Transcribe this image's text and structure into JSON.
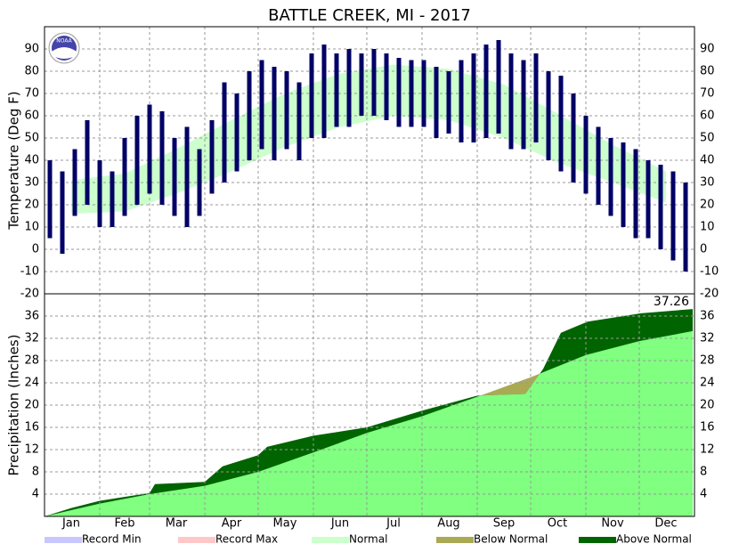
{
  "title": "BATTLE CREEK, MI - 2017",
  "logo_text": "NOAA",
  "legend": [
    {
      "name": "Record Min",
      "color": "#c8c8ff"
    },
    {
      "name": "Record Max",
      "color": "#ffc8c8"
    },
    {
      "name": "Normal",
      "color": "#ccffcc"
    },
    {
      "name": "Below Normal",
      "color": "#aaaa55"
    },
    {
      "name": "Above Normal",
      "color": "#006400"
    }
  ],
  "chart_data": [
    {
      "type": "range_bar",
      "ylabel": "Temperature (Deg F)",
      "xlim": [
        0,
        365
      ],
      "xticks": [
        {
          "value": 15,
          "label": "Jan"
        },
        {
          "value": 45,
          "label": "Feb"
        },
        {
          "value": 74,
          "label": "Mar"
        },
        {
          "value": 105,
          "label": "Apr"
        },
        {
          "value": 135,
          "label": "May"
        },
        {
          "value": 166,
          "label": "Jun"
        },
        {
          "value": 196,
          "label": "Jul"
        },
        {
          "value": 227,
          "label": "Aug"
        },
        {
          "value": 258,
          "label": "Sep"
        },
        {
          "value": 288,
          "label": "Oct"
        },
        {
          "value": 319,
          "label": "Nov"
        },
        {
          "value": 349,
          "label": "Dec"
        }
      ],
      "xgrid": [
        31,
        59,
        90,
        120,
        151,
        181,
        212,
        243,
        273,
        304,
        334
      ],
      "ylim": [
        -20,
        100
      ],
      "yticks": [
        -20,
        -10,
        0,
        10,
        20,
        30,
        40,
        50,
        60,
        70,
        80,
        90
      ],
      "grid": true,
      "color": "#000066",
      "x": [
        3,
        10,
        17,
        24,
        31,
        38,
        45,
        52,
        59,
        66,
        73,
        80,
        87,
        94,
        101,
        108,
        115,
        122,
        129,
        136,
        143,
        150,
        157,
        164,
        171,
        178,
        185,
        192,
        199,
        206,
        213,
        220,
        227,
        234,
        241,
        248,
        255,
        262,
        269,
        276,
        283,
        290,
        297,
        304,
        311,
        318,
        325,
        332,
        339,
        346,
        353,
        360
      ],
      "low": [
        5,
        -2,
        15,
        20,
        10,
        10,
        15,
        20,
        25,
        20,
        15,
        10,
        15,
        25,
        30,
        35,
        40,
        45,
        40,
        45,
        40,
        50,
        50,
        55,
        55,
        60,
        60,
        58,
        55,
        55,
        55,
        50,
        52,
        48,
        48,
        50,
        52,
        45,
        45,
        48,
        40,
        35,
        30,
        25,
        20,
        15,
        10,
        5,
        5,
        0,
        -5,
        -10
      ],
      "high": [
        40,
        35,
        45,
        58,
        40,
        35,
        50,
        60,
        65,
        62,
        50,
        55,
        45,
        58,
        75,
        70,
        80,
        85,
        82,
        80,
        75,
        88,
        92,
        88,
        90,
        88,
        90,
        88,
        86,
        85,
        85,
        82,
        80,
        85,
        88,
        92,
        94,
        88,
        85,
        88,
        80,
        78,
        70,
        60,
        55,
        50,
        48,
        45,
        40,
        38,
        35,
        30
      ],
      "normal_color": "#ccffcc",
      "normal_x": [
        15,
        45,
        74,
        105,
        135,
        166,
        196,
        227,
        258,
        288,
        319,
        349
      ],
      "normal_low": [
        16,
        17,
        25,
        35,
        46,
        55,
        60,
        58,
        50,
        39,
        30,
        21
      ],
      "normal_high": [
        31,
        34,
        45,
        58,
        70,
        79,
        83,
        81,
        74,
        61,
        47,
        35
      ]
    },
    {
      "type": "cumulative_area",
      "ylabel": "Precipitation (Inches)",
      "xlim": [
        0,
        365
      ],
      "ylim": [
        0,
        40
      ],
      "yticks": [
        4,
        8,
        12,
        16,
        20,
        24,
        28,
        32,
        36
      ],
      "grid": true,
      "above_color": "#006400",
      "below_color": "#aaaa55",
      "normal_color": "#80ff80",
      "x": [
        0,
        15,
        31,
        59,
        62,
        90,
        100,
        120,
        125,
        151,
        181,
        212,
        243,
        270,
        280,
        290,
        305,
        335,
        364
      ],
      "values": [
        0,
        1.5,
        2.8,
        4.2,
        5.8,
        6.2,
        9.0,
        11.0,
        12.5,
        14.5,
        16.0,
        19.0,
        21.7,
        22.0,
        26.5,
        33.0,
        35.0,
        36.5,
        37.26
      ],
      "normal_x": [
        0,
        31,
        59,
        90,
        120,
        151,
        181,
        212,
        243,
        273,
        304,
        334,
        364
      ],
      "normal_values": [
        0,
        2.3,
        4.0,
        5.5,
        8,
        11.5,
        15,
        18,
        21.5,
        25,
        29,
        31.5,
        33.3
      ]
    }
  ]
}
